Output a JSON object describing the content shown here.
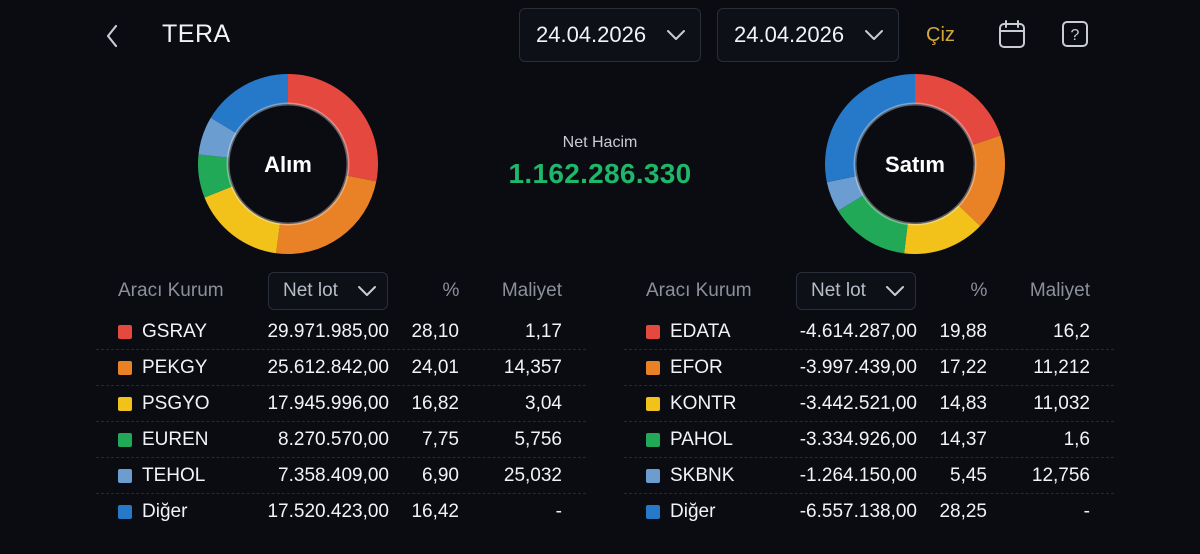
{
  "header": {
    "title": "TERA",
    "date_start": "24.04.2026",
    "date_end": "24.04.2026",
    "draw_label": "Çiz"
  },
  "summary": {
    "net_label": "Net Hacim",
    "net_value": "1.162.286.330"
  },
  "colors": {
    "red": "#e5483f",
    "orange": "#e98227",
    "yellow": "#f2c21b",
    "green": "#22a957",
    "lightblue": "#6b9dd1",
    "blue": "#2678c9",
    "positive": "#1fb86a",
    "accent": "#d4a93a"
  },
  "buy": {
    "label": "Alım",
    "columns": {
      "broker": "Aracı Kurum",
      "sort": "Net lot",
      "pct": "%",
      "cost": "Maliyet"
    },
    "rows": [
      {
        "name": "GSRAY",
        "lot": "29.971.985,00",
        "pct": "28,10",
        "cost": "1,17",
        "color": "#e5483f",
        "share": 28.1
      },
      {
        "name": "PEKGY",
        "lot": "25.612.842,00",
        "pct": "24,01",
        "cost": "14,357",
        "color": "#e98227",
        "share": 24.01
      },
      {
        "name": "PSGYO",
        "lot": "17.945.996,00",
        "pct": "16,82",
        "cost": "3,04",
        "color": "#f2c21b",
        "share": 16.82
      },
      {
        "name": "EUREN",
        "lot": "8.270.570,00",
        "pct": "7,75",
        "cost": "5,756",
        "color": "#22a957",
        "share": 7.75
      },
      {
        "name": "TEHOL",
        "lot": "7.358.409,00",
        "pct": "6,90",
        "cost": "25,032",
        "color": "#6b9dd1",
        "share": 6.9
      },
      {
        "name": "Diğer",
        "lot": "17.520.423,00",
        "pct": "16,42",
        "cost": "-",
        "color": "#2678c9",
        "share": 16.42
      }
    ]
  },
  "sell": {
    "label": "Satım",
    "columns": {
      "broker": "Aracı Kurum",
      "sort": "Net lot",
      "pct": "%",
      "cost": "Maliyet"
    },
    "rows": [
      {
        "name": "EDATA",
        "lot": "-4.614.287,00",
        "pct": "19,88",
        "cost": "16,2",
        "color": "#e5483f",
        "share": 19.88
      },
      {
        "name": "EFOR",
        "lot": "-3.997.439,00",
        "pct": "17,22",
        "cost": "11,212",
        "color": "#e98227",
        "share": 17.22
      },
      {
        "name": "KONTR",
        "lot": "-3.442.521,00",
        "pct": "14,83",
        "cost": "11,032",
        "color": "#f2c21b",
        "share": 14.83
      },
      {
        "name": "PAHOL",
        "lot": "-3.334.926,00",
        "pct": "14,37",
        "cost": "1,6",
        "color": "#22a957",
        "share": 14.37
      },
      {
        "name": "SKBNK",
        "lot": "-1.264.150,00",
        "pct": "5,45",
        "cost": "12,756",
        "color": "#6b9dd1",
        "share": 5.45
      },
      {
        "name": "Diğer",
        "lot": "-6.557.138,00",
        "pct": "28,25",
        "cost": "-",
        "color": "#2678c9",
        "share": 28.25
      }
    ]
  }
}
